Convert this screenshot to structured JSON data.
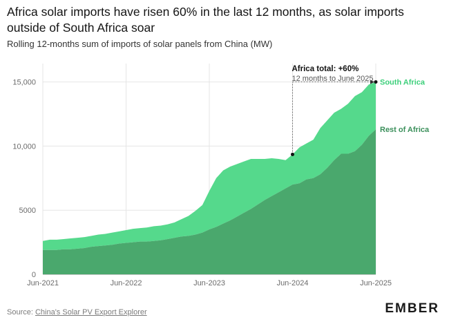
{
  "title": "Africa solar imports have risen 60% in the last 12 months, as solar imports outside of South Africa soar",
  "subtitle": "Rolling 12-months sum of imports of solar panels from China (MW)",
  "source_prefix": "Source: ",
  "source_link": "China's Solar PV Export Explorer",
  "logo": "EMBER",
  "colors": {
    "south_africa": "#55d98c",
    "rest_of_africa": "#4aa86d",
    "grid": "#e5e5e5",
    "label_sa": "#3ccf7a",
    "label_rest": "#3a8f5a"
  },
  "chart_data": {
    "type": "area",
    "stacked": true,
    "xlabel": "",
    "ylabel": "",
    "ylim": [
      0,
      16000
    ],
    "x_ticks": [
      "Jun-2021",
      "Jun-2022",
      "Jun-2023",
      "Jun-2024",
      "Jun-2025"
    ],
    "y_ticks": [
      "0",
      "5000",
      "10,000",
      "15,000"
    ],
    "y_tick_values": [
      0,
      5000,
      10000,
      15000
    ],
    "grid": true,
    "x": [
      "Jun-2021",
      "Jul-2021",
      "Aug-2021",
      "Sep-2021",
      "Oct-2021",
      "Nov-2021",
      "Dec-2021",
      "Jan-2022",
      "Feb-2022",
      "Mar-2022",
      "Apr-2022",
      "May-2022",
      "Jun-2022",
      "Jul-2022",
      "Aug-2022",
      "Sep-2022",
      "Oct-2022",
      "Nov-2022",
      "Dec-2022",
      "Jan-2023",
      "Feb-2023",
      "Mar-2023",
      "Apr-2023",
      "May-2023",
      "Jun-2023",
      "Jul-2023",
      "Aug-2023",
      "Sep-2023",
      "Oct-2023",
      "Nov-2023",
      "Dec-2023",
      "Jan-2024",
      "Feb-2024",
      "Mar-2024",
      "Apr-2024",
      "May-2024",
      "Jun-2024",
      "Jul-2024",
      "Aug-2024",
      "Sep-2024",
      "Oct-2024",
      "Nov-2024",
      "Dec-2024",
      "Jan-2025",
      "Feb-2025",
      "Mar-2025",
      "Apr-2025",
      "May-2025",
      "Jun-2025"
    ],
    "series": [
      {
        "name": "Rest of Africa",
        "values": [
          1900,
          1900,
          1900,
          1950,
          1950,
          2000,
          2050,
          2150,
          2200,
          2250,
          2300,
          2400,
          2450,
          2500,
          2550,
          2550,
          2600,
          2650,
          2750,
          2850,
          2950,
          3000,
          3100,
          3250,
          3500,
          3700,
          3950,
          4200,
          4500,
          4800,
          5100,
          5450,
          5800,
          6100,
          6400,
          6700,
          7000,
          7100,
          7400,
          7500,
          7800,
          8300,
          8900,
          9400,
          9400,
          9600,
          10100,
          10800,
          11300
        ]
      },
      {
        "name": "South Africa",
        "values": [
          700,
          800,
          800,
          800,
          850,
          850,
          850,
          850,
          900,
          900,
          950,
          950,
          1000,
          1050,
          1050,
          1100,
          1150,
          1150,
          1150,
          1200,
          1350,
          1550,
          1850,
          2150,
          3000,
          3800,
          4150,
          4200,
          4100,
          4000,
          3900,
          3550,
          3200,
          2950,
          2600,
          2200,
          2350,
          2800,
          2800,
          3000,
          3600,
          3700,
          3700,
          3500,
          3900,
          4300,
          4100,
          4000,
          3700
        ]
      }
    ],
    "annotation": {
      "title": "Africa total: +60%",
      "subtitle": "12 months to June 2025",
      "from": {
        "x": "Jun-2024",
        "y": 9350
      },
      "to": {
        "x": "Jun-2025",
        "y": 15000
      }
    }
  }
}
